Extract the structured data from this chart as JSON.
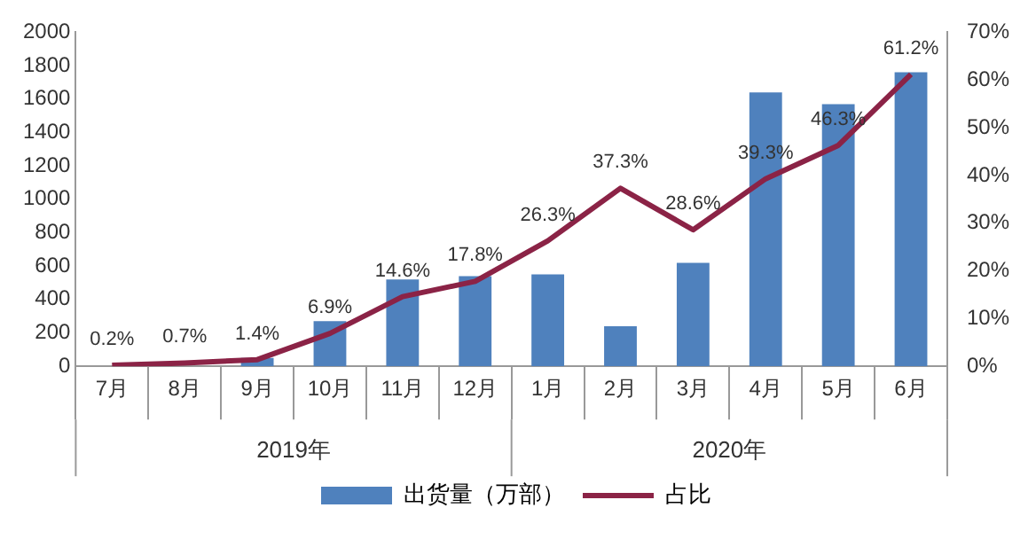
{
  "chart_data": {
    "type": "bar",
    "categories": [
      "7月",
      "8月",
      "9月",
      "10月",
      "11月",
      "12月",
      "1月",
      "2月",
      "3月",
      "4月",
      "5月",
      "6月"
    ],
    "series": [
      {
        "name": "出货量（万部）",
        "color": "#4f81bd",
        "values": [
          0,
          null,
          50,
          270,
          520,
          540,
          550,
          240,
          620,
          1640,
          1570,
          1760
        ]
      },
      {
        "name": "占比",
        "type": "line",
        "axis": "y2",
        "color": "#8b2346",
        "values": [
          0.2,
          0.7,
          1.4,
          6.9,
          14.6,
          17.8,
          26.3,
          37.3,
          28.6,
          39.3,
          46.3,
          61.2
        ],
        "value_labels": [
          "0.2%",
          "0.7%",
          "1.4%",
          "6.9%",
          "14.6%",
          "17.8%",
          "26.3%",
          "37.3%",
          "28.6%",
          "39.3%",
          "46.3%",
          "61.2%"
        ]
      }
    ],
    "ylim": [
      0,
      2000
    ],
    "yticks": [
      0,
      200,
      400,
      600,
      800,
      1000,
      1200,
      1400,
      1600,
      1800,
      2000
    ],
    "y2lim": [
      0,
      70
    ],
    "y2ticks": [
      {
        "value": 0,
        "label": "0%"
      },
      {
        "value": 10,
        "label": "10%"
      },
      {
        "value": 20,
        "label": "20%"
      },
      {
        "value": 30,
        "label": "30%"
      },
      {
        "value": 40,
        "label": "40%"
      },
      {
        "value": 50,
        "label": "50%"
      },
      {
        "value": 60,
        "label": "60%"
      },
      {
        "value": 70,
        "label": "70%"
      }
    ],
    "annotations": [
      "2019年",
      "2020年"
    ],
    "grid": false,
    "legend": "bottom",
    "marker": "none"
  }
}
